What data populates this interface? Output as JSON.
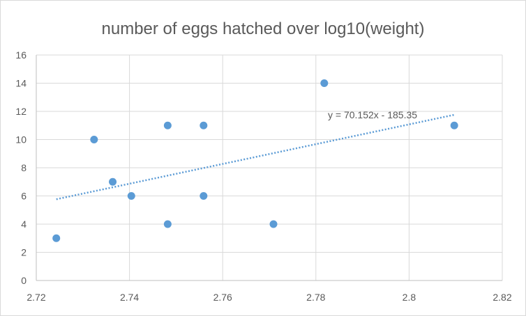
{
  "chart_data": {
    "type": "scatter",
    "title": "number of eggs hatched over log10(weight)",
    "xlabel": "",
    "ylabel": "",
    "xlim": [
      2.72,
      2.82
    ],
    "ylim": [
      0,
      16
    ],
    "x_ticks": [
      "2.72",
      "2.74",
      "2.76",
      "2.78",
      "2.8",
      "2.82"
    ],
    "y_ticks": [
      "0",
      "2",
      "4",
      "6",
      "8",
      "10",
      "12",
      "14",
      "16"
    ],
    "grid": true,
    "legend": "none",
    "series": [
      {
        "points": [
          {
            "x": 2.7243,
            "y": 3
          },
          {
            "x": 2.7324,
            "y": 10
          },
          {
            "x": 2.7364,
            "y": 7
          },
          {
            "x": 2.7404,
            "y": 6
          },
          {
            "x": 2.7482,
            "y": 11
          },
          {
            "x": 2.7482,
            "y": 4
          },
          {
            "x": 2.7559,
            "y": 11
          },
          {
            "x": 2.7559,
            "y": 6
          },
          {
            "x": 2.7709,
            "y": 4
          },
          {
            "x": 2.7818,
            "y": 14
          },
          {
            "x": 2.8097,
            "y": 11
          }
        ],
        "color": "#5b9bd5"
      }
    ],
    "trendline": {
      "type": "linear",
      "slope": 70.152,
      "intercept": -185.35,
      "label": "y = 70.152x - 185.35",
      "color": "#5b9bd5"
    }
  }
}
